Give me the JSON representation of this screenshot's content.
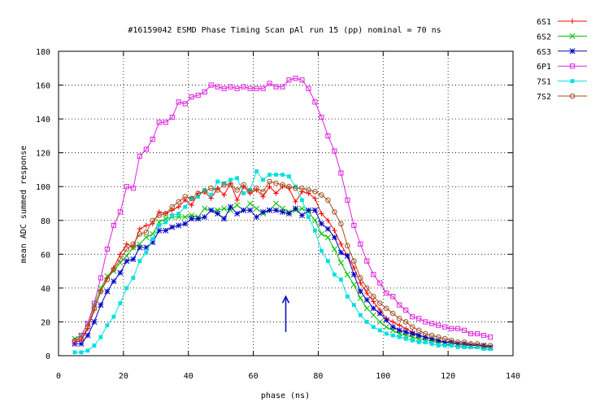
{
  "chart_data": {
    "type": "line",
    "title": "#16159042 ESMD Phase Timing Scan pAl run 15 (pp) nominal = 70 ns",
    "xlabel": "phase (ns)",
    "ylabel": "mean ADC summed response",
    "xlim": [
      0,
      140
    ],
    "ylim": [
      0,
      180
    ],
    "xticks": [
      0,
      20,
      40,
      60,
      80,
      100,
      120,
      140
    ],
    "yticks": [
      0,
      20,
      40,
      60,
      80,
      100,
      120,
      140,
      160,
      180
    ],
    "grid": true,
    "legend_position": "outside-right",
    "annotation": {
      "type": "arrow",
      "x": 70,
      "y_from": 14,
      "y_to": 35,
      "color": "#1010c0"
    },
    "x": [
      5,
      7,
      9,
      11,
      13,
      15,
      17,
      19,
      21,
      23,
      25,
      27,
      29,
      31,
      33,
      35,
      37,
      39,
      41,
      43,
      45,
      47,
      49,
      51,
      53,
      55,
      57,
      59,
      61,
      63,
      65,
      67,
      69,
      71,
      73,
      75,
      77,
      79,
      81,
      83,
      85,
      87,
      89,
      91,
      93,
      95,
      97,
      99,
      101,
      103,
      105,
      107,
      109,
      111,
      113,
      115,
      117,
      119,
      121,
      123,
      125,
      127,
      129,
      131,
      133
    ],
    "series": [
      {
        "name": "6S1",
        "color": "#ff0000",
        "marker": "plus",
        "values": [
          8,
          9,
          16,
          27,
          38,
          46,
          52,
          60,
          66,
          64,
          75,
          77,
          78,
          85,
          84,
          86,
          88,
          92,
          89,
          96,
          97,
          93,
          99,
          95,
          102,
          92,
          100,
          96,
          98,
          94,
          100,
          96,
          100,
          99,
          91,
          97,
          96,
          93,
          84,
          80,
          74,
          66,
          59,
          52,
          43,
          37,
          32,
          27,
          22,
          20,
          18,
          16,
          14,
          12,
          11,
          10,
          9,
          8,
          8,
          7,
          7,
          7,
          6,
          6,
          5
        ]
      },
      {
        "name": "6S2",
        "color": "#00c000",
        "marker": "cross",
        "values": [
          10,
          12,
          19,
          30,
          40,
          47,
          50,
          55,
          59,
          64,
          66,
          70,
          72,
          79,
          81,
          82,
          82,
          82,
          83,
          82,
          87,
          86,
          86,
          87,
          86,
          89,
          86,
          90,
          87,
          84,
          86,
          90,
          87,
          85,
          86,
          87,
          85,
          80,
          72,
          70,
          63,
          55,
          48,
          42,
          34,
          28,
          24,
          20,
          17,
          15,
          13,
          12,
          11,
          10,
          9,
          9,
          8,
          8,
          7,
          7,
          6,
          6,
          6,
          5,
          5
        ]
      },
      {
        "name": "6S3",
        "color": "#0000c0",
        "marker": "star",
        "values": [
          7,
          7,
          12,
          20,
          30,
          38,
          44,
          49,
          56,
          57,
          64,
          64,
          67,
          74,
          74,
          76,
          77,
          78,
          81,
          81,
          82,
          86,
          84,
          81,
          88,
          84,
          86,
          86,
          82,
          85,
          86,
          86,
          85,
          84,
          87,
          83,
          86,
          86,
          78,
          75,
          70,
          61,
          59,
          48,
          38,
          33,
          28,
          25,
          21,
          17,
          15,
          14,
          13,
          12,
          11,
          10,
          9,
          8,
          8,
          7,
          7,
          6,
          6,
          6,
          5
        ]
      },
      {
        "name": "6P1",
        "color": "#e020e0",
        "marker": "square",
        "values": [
          8,
          12,
          19,
          31,
          46,
          63,
          77,
          85,
          100,
          99,
          118,
          122,
          128,
          138,
          138,
          141,
          150,
          149,
          153,
          154,
          156,
          160,
          159,
          158,
          159,
          158,
          159,
          158,
          158,
          158,
          161,
          159,
          159,
          163,
          164,
          163,
          158,
          150,
          141,
          130,
          121,
          108,
          92,
          77,
          66,
          56,
          48,
          43,
          37,
          35,
          30,
          27,
          23,
          22,
          20,
          19,
          18,
          17,
          16,
          16,
          15,
          13,
          13,
          12,
          11
        ]
      },
      {
        "name": "7S1",
        "color": "#00e0e0",
        "marker": "filled-square",
        "values": [
          2,
          2,
          3,
          6,
          11,
          18,
          23,
          31,
          40,
          46,
          56,
          61,
          69,
          77,
          79,
          83,
          84,
          88,
          93,
          94,
          98,
          95,
          103,
          102,
          104,
          105,
          96,
          98,
          109,
          104,
          107,
          107,
          107,
          106,
          100,
          92,
          82,
          74,
          62,
          56,
          48,
          45,
          35,
          30,
          24,
          20,
          17,
          15,
          13,
          12,
          11,
          10,
          9,
          8,
          8,
          7,
          6,
          6,
          6,
          5,
          5,
          5,
          5,
          4,
          4
        ]
      },
      {
        "name": "7S2",
        "color": "#a05020",
        "marker": "circle",
        "values": [
          9,
          10,
          17,
          28,
          38,
          45,
          51,
          57,
          63,
          66,
          72,
          73,
          80,
          83,
          84,
          88,
          91,
          94,
          93,
          96,
          97,
          99,
          98,
          101,
          101,
          98,
          101,
          97,
          99,
          97,
          103,
          102,
          101,
          100,
          99,
          99,
          98,
          97,
          95,
          92,
          85,
          78,
          65,
          56,
          46,
          40,
          35,
          31,
          28,
          25,
          22,
          20,
          17,
          15,
          13,
          12,
          11,
          10,
          9,
          8,
          8,
          7,
          7,
          6,
          6
        ]
      }
    ]
  }
}
